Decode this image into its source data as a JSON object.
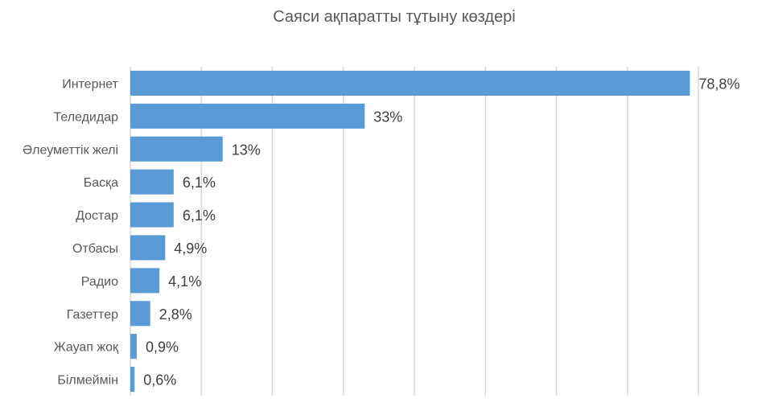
{
  "chart_data": {
    "type": "bar",
    "orientation": "horizontal",
    "title": "Саяси ақпаратты тұтыну көздері",
    "xlabel": "",
    "ylabel": "",
    "categories": [
      "Интернет",
      "Теледидар",
      "Әлеуметтік желі",
      "Басқа",
      "Достар",
      "Отбасы",
      "Радио",
      "Газеттер",
      "Жауап жоқ",
      "Білмеймін"
    ],
    "values": [
      78.8,
      33,
      13,
      6.1,
      6.1,
      4.9,
      4.1,
      2.8,
      0.9,
      0.6
    ],
    "value_labels": [
      "78,8%",
      "33%",
      "13%",
      "6,1%",
      "6,1%",
      "4,9%",
      "4,1%",
      "2,8%",
      "0,9%",
      "0,6%"
    ],
    "xlim": [
      0,
      80
    ],
    "grid": true,
    "bar_color": "#5b9bd5"
  }
}
